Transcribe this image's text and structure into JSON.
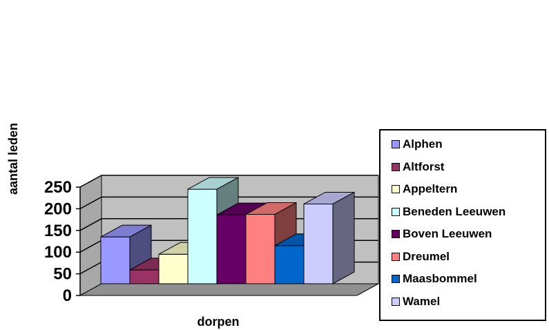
{
  "chart_data": {
    "type": "bar",
    "xlabel": "dorpen",
    "ylabel": "aantal leden",
    "ylim": [
      0,
      250
    ],
    "yticks": [
      "0",
      "50",
      "100",
      "150",
      "200",
      "250"
    ],
    "grid": true,
    "legend_position": "right",
    "series": [
      {
        "name": "Alphen",
        "value": 108,
        "color": "#9999ff"
      },
      {
        "name": "Altforst",
        "value": 32,
        "color": "#993366"
      },
      {
        "name": "Appeltern",
        "value": 68,
        "color": "#ffffcc"
      },
      {
        "name": "Beneden Leeuwen",
        "value": 218,
        "color": "#ccffff"
      },
      {
        "name": "Boven Leeuwen",
        "value": 159,
        "color": "#660066"
      },
      {
        "name": "Dreumel",
        "value": 160,
        "color": "#ff8080"
      },
      {
        "name": "Maasbommel",
        "value": 88,
        "color": "#0066cc"
      },
      {
        "name": "Wamel",
        "value": 184,
        "color": "#ccccff"
      }
    ]
  }
}
